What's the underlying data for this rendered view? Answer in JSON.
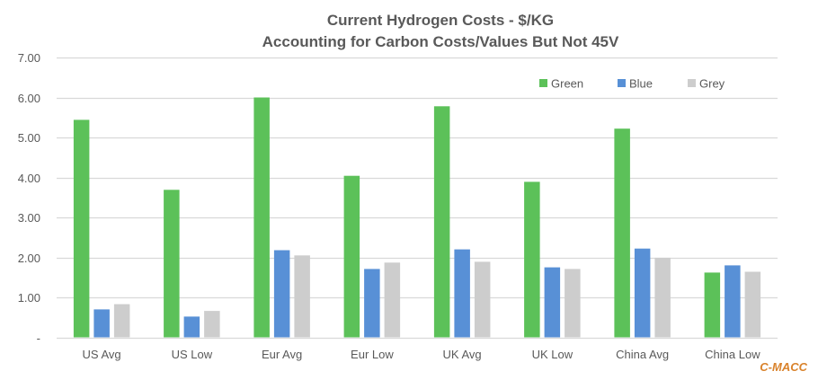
{
  "chart_data": {
    "type": "bar",
    "title": "Current Hydrogen Costs - $/KG",
    "subtitle": "Accounting for Carbon Costs/Values But Not 45V",
    "xlabel": "",
    "ylabel": "",
    "ylim": [
      0,
      7
    ],
    "yticks": [
      0,
      1,
      2,
      3,
      4,
      5,
      6,
      7
    ],
    "ytick_labels": [
      "-",
      "1.00",
      "2.00",
      "3.00",
      "4.00",
      "5.00",
      "6.00",
      "7.00"
    ],
    "grid": true,
    "legend_position": "top-right",
    "categories": [
      "US Avg",
      "US Low",
      "Eur Avg",
      "Eur Low",
      "UK Avg",
      "UK Low",
      "China Avg",
      "China Low"
    ],
    "series": [
      {
        "name": "Green",
        "color": "#5CC159",
        "values": [
          5.44,
          3.69,
          6.0,
          4.04,
          5.78,
          3.89,
          5.22,
          1.62
        ]
      },
      {
        "name": "Blue",
        "color": "#5890D6",
        "values": [
          0.7,
          0.52,
          2.18,
          1.71,
          2.2,
          1.75,
          2.22,
          1.8
        ]
      },
      {
        "name": "Grey",
        "color": "#CDCDCD",
        "values": [
          0.83,
          0.66,
          2.05,
          1.87,
          1.89,
          1.71,
          1.99,
          1.64
        ]
      }
    ]
  },
  "watermark": "C-MACC",
  "colors": {
    "text": "#595959",
    "grid": "#D9D9D9",
    "watermark": "#D9822B"
  }
}
